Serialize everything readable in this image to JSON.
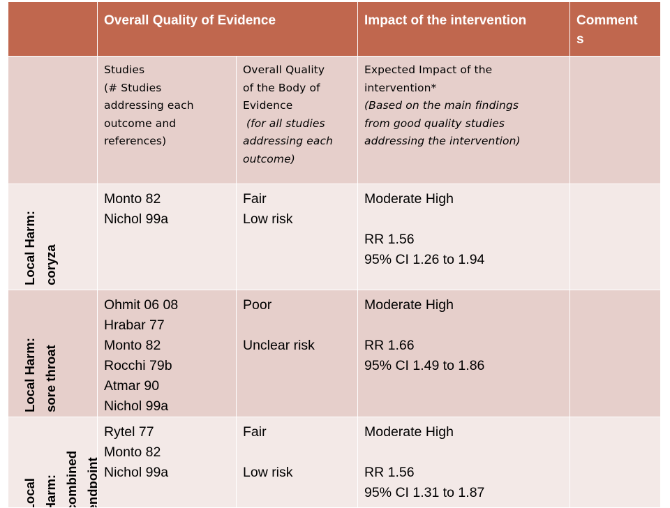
{
  "header": {
    "overall_quality": "Overall Quality of Evidence",
    "impact": "Impact of the intervention",
    "comments_line1": "Comment",
    "comments_line2": "s"
  },
  "subheader": {
    "studies": [
      "Studies",
      "(# Studies",
      "addressing each",
      "outcome and",
      "references)"
    ],
    "quality": [
      "Overall Quality",
      "of the Body of",
      "Evidence",
      "(for all studies",
      "addressing each",
      "outcome)"
    ],
    "impact": [
      "Expected Impact of the",
      "intervention*",
      "(Based on the main findings",
      "from good quality studies",
      "addressing the intervention)"
    ]
  },
  "rows": [
    {
      "label": [
        "Local Harm:",
        "coryza"
      ],
      "studies": [
        "Monto 82",
        "Nichol 99a"
      ],
      "quality": [
        "Fair",
        "Low risk"
      ],
      "impact": [
        "Moderate High",
        "",
        "RR 1.56",
        "95% CI 1.26 to 1.94"
      ],
      "comments": ""
    },
    {
      "label": [
        "Local Harm:",
        "sore throat"
      ],
      "studies": [
        "Ohmit 06 08",
        "Hrabar 77",
        "Monto 82",
        "Rocchi 79b",
        "Atmar 90",
        "Nichol 99a"
      ],
      "quality": [
        "Poor",
        "",
        "Unclear risk"
      ],
      "impact": [
        "Moderate High",
        "",
        "RR 1.66",
        "95% CI 1.49 to 1.86"
      ],
      "comments": ""
    },
    {
      "label": [
        "Local",
        "Harm:",
        "combined",
        "endpoint"
      ],
      "studies": [
        "Rytel 77",
        "Monto 82",
        "Nichol 99a"
      ],
      "quality": [
        "Fair",
        "",
        "Low risk"
      ],
      "impact": [
        "Moderate High",
        "",
        "RR 1.56",
        "95% CI 1.31 to 1.87"
      ],
      "comments": ""
    }
  ]
}
